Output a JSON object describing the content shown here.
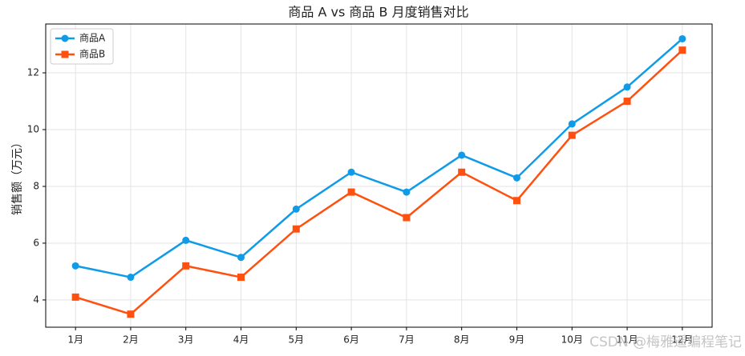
{
  "chart_data": {
    "type": "line",
    "title": "商品 A vs 商品 B 月度销售对比",
    "ylabel": "销售额（万元）",
    "categories": [
      "1月",
      "2月",
      "3月",
      "4月",
      "5月",
      "6月",
      "7月",
      "8月",
      "9月",
      "10月",
      "11月",
      "12月"
    ],
    "series": [
      {
        "name": "商品A",
        "color": "#0f9be8",
        "marker": "circle",
        "values": [
          5.2,
          4.8,
          6.1,
          5.5,
          7.2,
          8.5,
          7.8,
          9.1,
          8.3,
          10.2,
          11.5,
          13.2
        ]
      },
      {
        "name": "商品B",
        "color": "#ff5010",
        "marker": "square",
        "values": [
          4.1,
          3.5,
          5.2,
          4.8,
          6.5,
          7.8,
          6.9,
          8.5,
          7.5,
          9.8,
          11.0,
          12.8
        ]
      }
    ],
    "ylim": [
      3.04,
      13.72
    ],
    "yticks": [
      4,
      6,
      8,
      10,
      12
    ],
    "grid": true,
    "legend": "upper-left"
  },
  "watermark": "CSDN @梅雅遥编程笔记"
}
